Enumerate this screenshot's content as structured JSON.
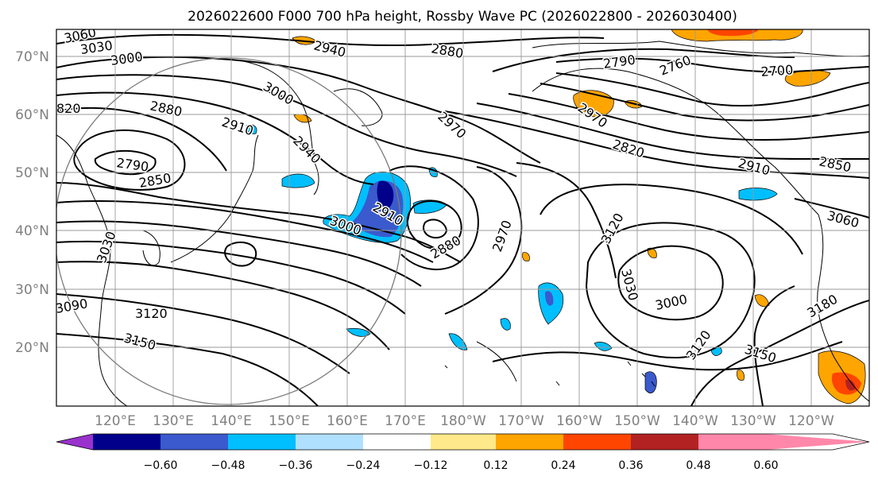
{
  "figure": {
    "title": "2026022600 F000 700 hPa height, Rossby Wave PC (2026022800 - 2026030400)"
  },
  "map": {
    "lat_labels": [
      "20°N",
      "30°N",
      "40°N",
      "50°N",
      "60°N",
      "70°N"
    ],
    "lon_labels": [
      "120°E",
      "130°E",
      "140°E",
      "150°E",
      "160°E",
      "170°E",
      "180°W",
      "170°W",
      "160°W",
      "150°W",
      "140°W",
      "130°W",
      "120°W"
    ],
    "contour_labels": [
      "3060",
      "3030",
      "3000",
      "2940",
      "2880",
      "2790",
      "2760",
      "2700",
      "820",
      "2880",
      "2910",
      "3000",
      "2940",
      "2970",
      "2970",
      "2820",
      "2910",
      "2850",
      "2790",
      "2850",
      "2910",
      "3000",
      "2880",
      "2970",
      "3120",
      "3060",
      "3030",
      "3030",
      "3000",
      "3120",
      "3090",
      "3120",
      "3180",
      "3150",
      "3150"
    ]
  },
  "colorbar": {
    "ticks": [
      "−0.60",
      "−0.48",
      "−0.36",
      "−0.24",
      "−0.12",
      "0.12",
      "0.24",
      "0.36",
      "0.48",
      "0.60"
    ],
    "colors": [
      "#9932cc",
      "#00008b",
      "#3a5acd",
      "#00bfff",
      "#b0e0ff",
      "#ffffff",
      "#ffe98a",
      "#ffa500",
      "#ff4500",
      "#b22222",
      "#ff88aa"
    ]
  },
  "shading_colors": {
    "neg_light": "#00bfff",
    "neg_mid": "#3a5acd",
    "neg_dark": "#00008b",
    "pos_light": "#ffe98a",
    "pos_mid": "#ffa500",
    "pos_strong": "#ff4500",
    "pos_dark": "#b22222"
  }
}
